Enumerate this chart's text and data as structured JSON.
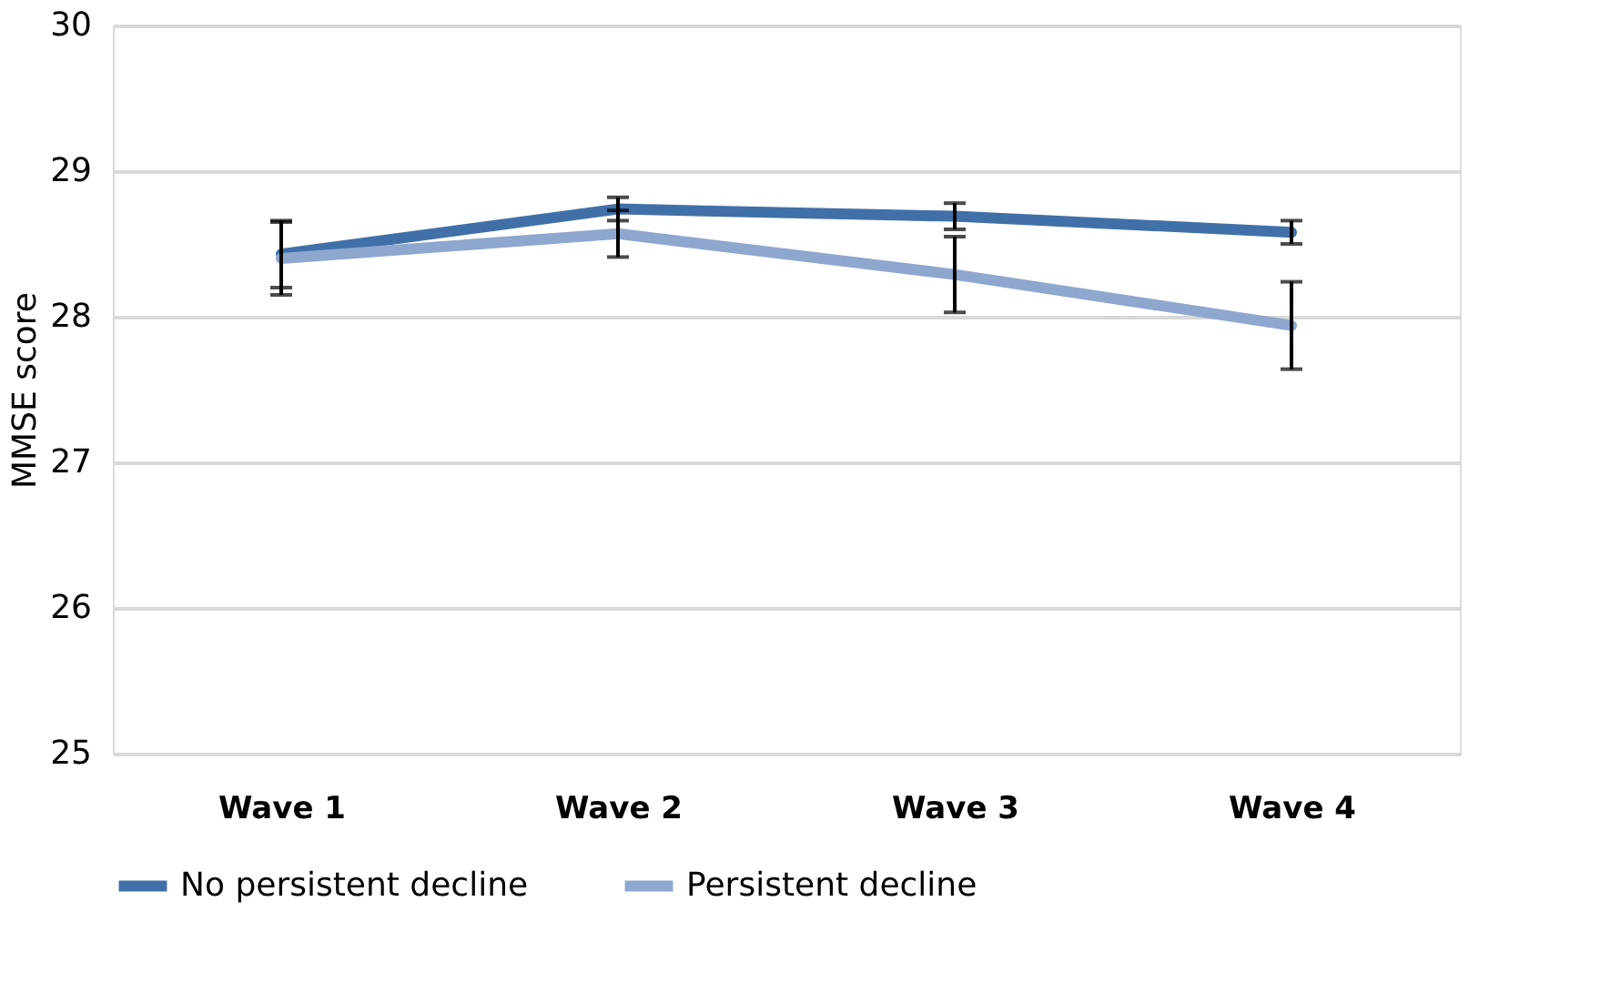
{
  "chart_data": {
    "type": "line",
    "ylabel": "MMSE score",
    "categories": [
      "Wave 1",
      "Wave 2",
      "Wave 3",
      "Wave 4"
    ],
    "series": [
      {
        "name": "No persistent decline",
        "color": "#4170a8",
        "values": [
          28.43,
          28.74,
          28.69,
          28.58
        ],
        "errors": [
          0.23,
          0.08,
          0.09,
          0.08
        ]
      },
      {
        "name": "Persistent decline",
        "color": "#8ea7cf",
        "values": [
          28.4,
          28.57,
          28.29,
          27.94
        ],
        "errors": [
          0.25,
          0.16,
          0.26,
          0.3
        ]
      }
    ],
    "ylim": [
      25,
      30
    ],
    "yticks": [
      25,
      26,
      27,
      28,
      29,
      30
    ],
    "grid": "y",
    "legend": "bottom",
    "marker": "none",
    "line_style": "solid"
  }
}
